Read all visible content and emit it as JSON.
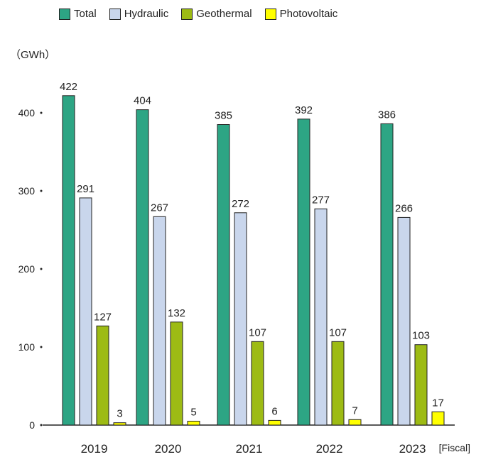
{
  "chart_data": {
    "type": "bar",
    "categories": [
      "2019",
      "2020",
      "2021",
      "2022",
      "2023"
    ],
    "series": [
      {
        "name": "Total",
        "color": "#2da584",
        "values": [
          422,
          404,
          385,
          392,
          386
        ]
      },
      {
        "name": "Hydraulic",
        "color": "#c9d6ec",
        "values": [
          291,
          267,
          272,
          277,
          266
        ]
      },
      {
        "name": "Geothermal",
        "color": "#9dbb14",
        "values": [
          127,
          132,
          107,
          107,
          103
        ]
      },
      {
        "name": "Photovoltaic",
        "color": "#ffff00",
        "values": [
          3,
          5,
          6,
          7,
          17
        ]
      }
    ],
    "ylabel": "（GWh）",
    "xlabel": "[Fiscal]",
    "yticks": [
      0,
      100,
      200,
      300,
      400
    ],
    "ylim": [
      0,
      450
    ],
    "legend_position": "top",
    "grid": false
  }
}
